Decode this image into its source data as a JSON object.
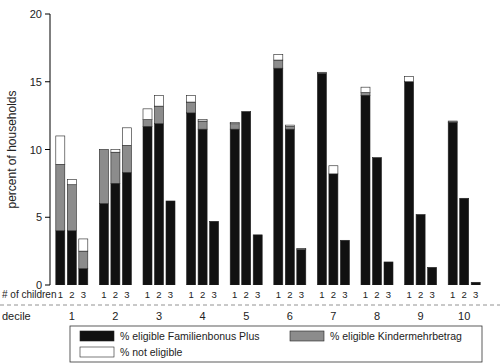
{
  "chart_data": {
    "type": "bar",
    "stacked": true,
    "grid": false,
    "ylabel": "percent of households",
    "xlabel": "# of children",
    "group_label": "decile",
    "groups": [
      "1",
      "2",
      "3",
      "4",
      "5",
      "6",
      "7",
      "8",
      "9",
      "10"
    ],
    "categories": [
      "1",
      "2",
      "3",
      "1",
      "2",
      "3",
      "1",
      "2",
      "3",
      "1",
      "2",
      "3",
      "1",
      "2",
      "3",
      "1",
      "2",
      "3",
      "1",
      "2",
      "3",
      "1",
      "2",
      "3",
      "1",
      "2",
      "3",
      "1",
      "2",
      "3"
    ],
    "ylim": [
      0,
      20
    ],
    "yticks": [
      0,
      5,
      10,
      15,
      20
    ],
    "legend": "bottom",
    "series": [
      {
        "name": "% eligible Familienbonus Plus",
        "color": "#111111",
        "values": [
          4.0,
          4.0,
          1.2,
          6.0,
          7.5,
          8.3,
          11.7,
          11.9,
          6.2,
          12.7,
          11.5,
          4.7,
          11.5,
          12.8,
          3.7,
          16.0,
          11.5,
          2.6,
          15.6,
          8.2,
          3.3,
          14.0,
          9.4,
          1.7,
          15.0,
          5.2,
          1.3,
          12.0,
          6.4,
          0.2
        ]
      },
      {
        "name": "% eligible Kindermehrbetrag",
        "color": "#8c8c8c",
        "values": [
          4.9,
          3.4,
          1.3,
          4.0,
          2.3,
          2.0,
          0.5,
          1.3,
          0.0,
          0.8,
          0.6,
          0.0,
          0.4,
          0.0,
          0.0,
          0.6,
          0.2,
          0.1,
          0.1,
          0.0,
          0.0,
          0.2,
          0.0,
          0.0,
          0.0,
          0.0,
          0.0,
          0.1,
          0.0,
          0.0
        ]
      },
      {
        "name": "% not eligible",
        "color": "#ffffff",
        "values": [
          2.1,
          0.4,
          0.9,
          0.0,
          0.2,
          1.3,
          0.8,
          0.8,
          0.0,
          0.5,
          0.1,
          0.0,
          0.1,
          0.0,
          0.0,
          0.4,
          0.1,
          0.0,
          0.0,
          0.6,
          0.0,
          0.4,
          0.0,
          0.0,
          0.4,
          0.0,
          0.0,
          0.0,
          0.0,
          0.0
        ]
      }
    ]
  }
}
